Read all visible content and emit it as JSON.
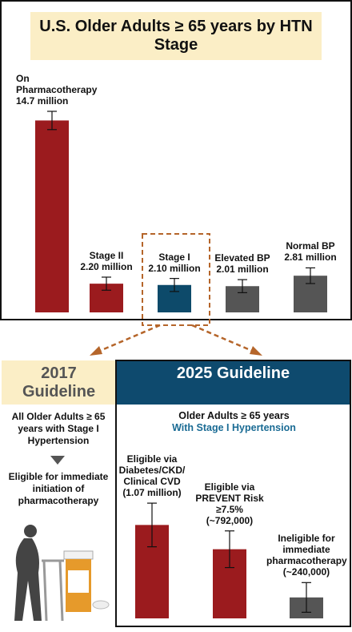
{
  "chart_data": [
    {
      "type": "bar",
      "title": "U.S. Older Adults ≥ 65 years by HTN Stage",
      "categories": [
        "On Pharmacotherapy",
        "Stage II",
        "Stage I",
        "Elevated BP",
        "Normal BP"
      ],
      "values": [
        14.7,
        2.2,
        2.1,
        2.01,
        2.81
      ],
      "value_labels": [
        "14.7 million",
        "2.20 million",
        "2.10 million",
        "2.01 million",
        "2.81 million"
      ],
      "errors": [
        0.7,
        0.5,
        0.5,
        0.5,
        0.6
      ],
      "colors": [
        "#9b1b1e",
        "#9b1b1e",
        "#0d4a6a",
        "#555555",
        "#555555"
      ]
    },
    {
      "type": "bar",
      "title": "2025 Guideline",
      "subtitle": [
        "Older Adults ≥ 65 years",
        "With Stage I Hypertension"
      ],
      "categories": [
        "Eligible via Diabetes/CKD/ Clinical CVD",
        "Eligible via PREVENT Risk ≥7.5%",
        "Ineligible for immediate pharmacotherapy"
      ],
      "values": [
        1070000,
        792000,
        240000
      ],
      "value_labels": [
        "(1.07 million)",
        "(~792,000)",
        "(~240,000)"
      ],
      "errors": [
        250000,
        210000,
        170000
      ],
      "colors": [
        "#9b1b1e",
        "#9b1b1e",
        "#555555"
      ]
    }
  ],
  "guideline_2017": {
    "title": "2017 Guideline",
    "population": "All Older Adults ≥ 65 years with Stage I Hypertension",
    "outcome": "Eligible for immediate initiation of pharmacotherapy"
  }
}
